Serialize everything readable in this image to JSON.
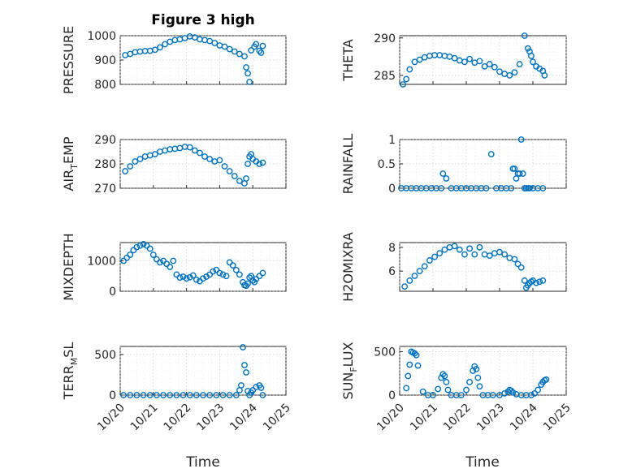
{
  "figure": {
    "title": "Figure 3 high",
    "xlabel": "Time",
    "marker_color": "#0072bd"
  },
  "chart_data": [
    {
      "type": "scatter",
      "ylabel": "PRESSURE",
      "ylim": [
        800,
        1000
      ],
      "yticks": [
        800,
        900,
        1000
      ],
      "xlim": [
        20,
        25
      ],
      "xticks": [
        "10/20",
        "10/21",
        "10/22",
        "10/23",
        "10/24",
        "10/25"
      ],
      "series": [
        {
          "x": [
            20.15,
            20.3,
            20.45,
            20.6,
            20.75,
            20.9,
            21.05,
            21.2,
            21.35,
            21.5,
            21.65,
            21.8,
            21.95,
            22.1,
            22.25,
            22.4,
            22.55,
            22.7,
            22.85,
            23.0,
            23.15,
            23.3,
            23.45,
            23.6,
            23.75,
            23.8,
            23.85,
            23.9,
            23.95,
            24.05,
            24.1,
            24.2,
            24.25,
            24.3
          ],
          "y": [
            920,
            925,
            932,
            935,
            937,
            938,
            942,
            952,
            965,
            975,
            982,
            985,
            990,
            997,
            993,
            985,
            982,
            978,
            970,
            960,
            955,
            945,
            935,
            925,
            915,
            870,
            845,
            810,
            940,
            955,
            965,
            938,
            930,
            958
          ]
        }
      ]
    },
    {
      "type": "scatter",
      "ylabel": "THETA",
      "ylim": [
        283.8,
        290.3
      ],
      "yticks": [
        285,
        290
      ],
      "xlim": [
        20,
        25
      ],
      "xticks": [
        "10/20",
        "10/21",
        "10/22",
        "10/23",
        "10/24",
        "10/25"
      ],
      "series": [
        {
          "x": [
            20.1,
            20.2,
            20.3,
            20.45,
            20.6,
            20.75,
            20.9,
            21.05,
            21.2,
            21.35,
            21.5,
            21.65,
            21.8,
            21.95,
            22.1,
            22.25,
            22.4,
            22.55,
            22.7,
            22.85,
            23.0,
            23.15,
            23.3,
            23.45,
            23.6,
            23.75,
            23.85,
            23.9,
            23.95,
            24.0,
            24.1,
            24.2,
            24.3,
            24.35
          ],
          "y": [
            283.8,
            284.5,
            285.8,
            286.8,
            287.1,
            287.4,
            287.6,
            287.7,
            287.7,
            287.6,
            287.5,
            287.3,
            287.0,
            286.8,
            287.2,
            286.7,
            286.9,
            286.2,
            286.5,
            286.1,
            285.5,
            285.2,
            285.0,
            285.4,
            286.5,
            290.3,
            288.6,
            288.2,
            287.6,
            286.8,
            286.2,
            285.9,
            285.6,
            285.0
          ]
        }
      ]
    },
    {
      "type": "scatter",
      "ylabel": "AIR_TEMP",
      "ylim": [
        270,
        290
      ],
      "yticks": [
        270,
        280,
        290
      ],
      "xlim": [
        20,
        25
      ],
      "xticks": [
        "10/20",
        "10/21",
        "10/22",
        "10/23",
        "10/24",
        "10/25"
      ],
      "series": [
        {
          "x": [
            20.15,
            20.3,
            20.45,
            20.6,
            20.75,
            20.9,
            21.05,
            21.2,
            21.35,
            21.5,
            21.65,
            21.8,
            21.95,
            22.1,
            22.25,
            22.4,
            22.55,
            22.7,
            22.85,
            23.0,
            23.15,
            23.3,
            23.45,
            23.6,
            23.75,
            23.8,
            23.85,
            23.9,
            23.95,
            24.0,
            24.1,
            24.2,
            24.3
          ],
          "y": [
            277,
            279,
            281,
            282,
            283,
            283.5,
            284,
            285,
            285.5,
            286,
            286.2,
            286.5,
            287,
            286.8,
            285.5,
            284.5,
            283,
            282,
            281,
            281.5,
            279,
            277,
            275,
            273,
            272,
            274,
            280,
            283,
            284,
            282,
            281,
            280,
            280.5
          ]
        }
      ]
    },
    {
      "type": "scatter",
      "ylabel": "RAINFALL",
      "ylim": [
        0,
        1
      ],
      "yticks": [
        0,
        0.5,
        1
      ],
      "xlim": [
        20,
        25
      ],
      "xticks": [
        "10/20",
        "10/21",
        "10/22",
        "10/23",
        "10/24",
        "10/25"
      ],
      "series": [
        {
          "x": [
            20.05,
            20.2,
            20.35,
            20.5,
            20.65,
            20.8,
            20.95,
            21.1,
            21.25,
            21.3,
            21.4,
            21.55,
            21.7,
            21.85,
            22.0,
            22.15,
            22.3,
            22.45,
            22.6,
            22.75,
            22.9,
            23.05,
            23.2,
            23.35,
            23.4,
            23.45,
            23.5,
            23.55,
            23.6,
            23.65,
            23.7,
            23.75,
            23.8,
            23.85,
            23.9,
            24.0,
            24.15,
            24.3
          ],
          "y": [
            0,
            0,
            0,
            0,
            0,
            0,
            0,
            0,
            0,
            0.3,
            0.2,
            0,
            0,
            0,
            0,
            0,
            0,
            0,
            0,
            0.7,
            0,
            0,
            0,
            0,
            0.4,
            0.4,
            0.2,
            0.3,
            0.3,
            1.0,
            0.3,
            0,
            0,
            0,
            0,
            0,
            0,
            0
          ]
        }
      ]
    },
    {
      "type": "scatter",
      "ylabel": "MIXDEPTH",
      "ylim": [
        0,
        1600
      ],
      "yticks": [
        0,
        1000
      ],
      "xlim": [
        20,
        25
      ],
      "xticks": [
        "10/20",
        "10/21",
        "10/22",
        "10/23",
        "10/24",
        "10/25"
      ],
      "series": [
        {
          "x": [
            20.1,
            20.2,
            20.3,
            20.4,
            20.5,
            20.6,
            20.7,
            20.8,
            20.9,
            21.0,
            21.1,
            21.2,
            21.3,
            21.4,
            21.5,
            21.6,
            21.7,
            21.8,
            21.9,
            22.0,
            22.1,
            22.2,
            22.3,
            22.4,
            22.5,
            22.6,
            22.7,
            22.8,
            22.9,
            23.0,
            23.1,
            23.2,
            23.3,
            23.4,
            23.5,
            23.6,
            23.7,
            23.75,
            23.8,
            23.85,
            23.9,
            23.95,
            24.0,
            24.05,
            24.1,
            24.2,
            24.3
          ],
          "y": [
            1000,
            1100,
            1200,
            1350,
            1450,
            1500,
            1550,
            1500,
            1400,
            1200,
            1050,
            950,
            1000,
            900,
            800,
            1000,
            550,
            450,
            480,
            420,
            460,
            520,
            380,
            330,
            420,
            480,
            550,
            650,
            700,
            600,
            550,
            500,
            950,
            850,
            700,
            550,
            300,
            200,
            180,
            250,
            450,
            500,
            350,
            300,
            400,
            500,
            600
          ]
        }
      ]
    },
    {
      "type": "scatter",
      "ylabel": "H2OMIXRA",
      "ylim": [
        4.3,
        8.4
      ],
      "yticks": [
        6,
        8
      ],
      "xlim": [
        20,
        25
      ],
      "xticks": [
        "10/20",
        "10/21",
        "10/22",
        "10/23",
        "10/24",
        "10/25"
      ],
      "series": [
        {
          "x": [
            20.15,
            20.3,
            20.45,
            20.6,
            20.75,
            20.9,
            21.05,
            21.2,
            21.35,
            21.5,
            21.65,
            21.8,
            21.95,
            22.1,
            22.25,
            22.4,
            22.55,
            22.7,
            22.85,
            23.0,
            23.15,
            23.3,
            23.45,
            23.55,
            23.65,
            23.75,
            23.8,
            23.85,
            23.9,
            23.95,
            24.0,
            24.1,
            24.2,
            24.3
          ],
          "y": [
            4.7,
            5.2,
            5.6,
            6.0,
            6.4,
            6.9,
            7.2,
            7.5,
            7.8,
            8.0,
            8.1,
            7.8,
            7.4,
            7.9,
            7.4,
            8.0,
            7.4,
            7.3,
            7.5,
            7.6,
            7.4,
            7.1,
            7.0,
            6.6,
            6.3,
            5.2,
            4.6,
            4.8,
            5.0,
            5.1,
            5.2,
            5.0,
            5.1,
            5.2
          ]
        }
      ]
    },
    {
      "type": "scatter",
      "ylabel": "TERR_MSL",
      "ylim": [
        0,
        600
      ],
      "yticks": [
        0,
        500
      ],
      "xlim": [
        20,
        25
      ],
      "xticks": [
        "10/20",
        "10/21",
        "10/22",
        "10/23",
        "10/24",
        "10/25"
      ],
      "series": [
        {
          "x": [
            20.1,
            20.3,
            20.5,
            20.7,
            20.9,
            21.1,
            21.3,
            21.5,
            21.7,
            21.9,
            22.1,
            22.3,
            22.5,
            22.7,
            22.9,
            23.1,
            23.3,
            23.5,
            23.6,
            23.65,
            23.7,
            23.75,
            23.8,
            23.85,
            23.9,
            23.95,
            24.0,
            24.1,
            24.2,
            24.25,
            24.3
          ],
          "y": [
            0,
            0,
            0,
            0,
            0,
            0,
            0,
            0,
            0,
            0,
            0,
            0,
            0,
            0,
            0,
            0,
            0,
            0,
            60,
            120,
            590,
            370,
            280,
            50,
            0,
            30,
            60,
            100,
            120,
            90,
            0
          ]
        }
      ]
    },
    {
      "type": "scatter",
      "ylabel": "SUN_FLUX",
      "ylim": [
        0,
        560
      ],
      "yticks": [
        0,
        500
      ],
      "xlim": [
        20,
        25
      ],
      "xticks": [
        "10/20",
        "10/21",
        "10/22",
        "10/23",
        "10/24",
        "10/25"
      ],
      "series": [
        {
          "x": [
            20.2,
            20.25,
            20.3,
            20.35,
            20.4,
            20.45,
            20.5,
            20.55,
            20.7,
            20.85,
            21.0,
            21.15,
            21.25,
            21.3,
            21.35,
            21.4,
            21.45,
            21.55,
            21.7,
            21.85,
            22.0,
            22.1,
            22.2,
            22.25,
            22.3,
            22.35,
            22.4,
            22.5,
            22.65,
            22.8,
            23.0,
            23.15,
            23.25,
            23.3,
            23.35,
            23.4,
            23.5,
            23.65,
            23.8,
            23.95,
            24.05,
            24.15,
            24.25,
            24.3,
            24.35,
            24.4
          ],
          "y": [
            80,
            220,
            350,
            500,
            490,
            480,
            460,
            340,
            40,
            0,
            0,
            70,
            200,
            240,
            220,
            150,
            60,
            0,
            0,
            0,
            60,
            150,
            280,
            330,
            300,
            200,
            100,
            0,
            0,
            0,
            0,
            20,
            40,
            60,
            50,
            30,
            10,
            0,
            0,
            0,
            20,
            60,
            120,
            150,
            170,
            180
          ]
        }
      ]
    }
  ]
}
